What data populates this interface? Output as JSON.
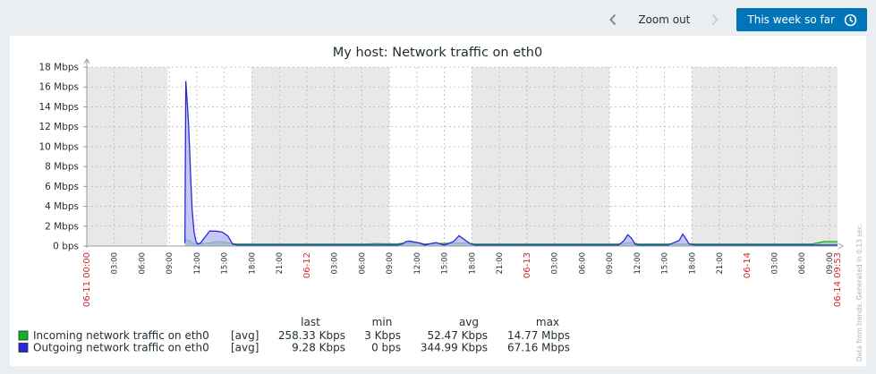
{
  "toolbar": {
    "zoom_out_label": "Zoom out",
    "period_label": "This week so far",
    "prev_icon": "chevron-left-icon",
    "next_icon": "chevron-right-icon",
    "clock_icon": "clock-icon"
  },
  "chart_data": {
    "type": "area",
    "title": "My host: Network traffic on eth0",
    "ylim": [
      0,
      18
    ],
    "y_unit": "Mbps",
    "y_ticks": [
      "0 bps",
      "2 Mbps",
      "4 Mbps",
      "6 Mbps",
      "8 Mbps",
      "10 Mbps",
      "12 Mbps",
      "14 Mbps",
      "16 Mbps",
      "18 Mbps"
    ],
    "x_range_hours": [
      0,
      81.88
    ],
    "x_labels": [
      {
        "h": 0,
        "text": "06-11 00:00",
        "red": true
      },
      {
        "h": 3,
        "text": "03:00"
      },
      {
        "h": 6,
        "text": "06:00"
      },
      {
        "h": 9,
        "text": "09:00"
      },
      {
        "h": 12,
        "text": "12:00"
      },
      {
        "h": 15,
        "text": "15:00"
      },
      {
        "h": 18,
        "text": "18:00"
      },
      {
        "h": 21,
        "text": "21:00"
      },
      {
        "h": 24,
        "text": "06-12",
        "red": true
      },
      {
        "h": 27,
        "text": "03:00"
      },
      {
        "h": 30,
        "text": "06:00"
      },
      {
        "h": 33,
        "text": "09:00"
      },
      {
        "h": 36,
        "text": "12:00"
      },
      {
        "h": 39,
        "text": "15:00"
      },
      {
        "h": 42,
        "text": "18:00"
      },
      {
        "h": 45,
        "text": "21:00"
      },
      {
        "h": 48,
        "text": "06-13",
        "red": true
      },
      {
        "h": 51,
        "text": "03:00"
      },
      {
        "h": 54,
        "text": "06:00"
      },
      {
        "h": 57,
        "text": "09:00"
      },
      {
        "h": 60,
        "text": "12:00"
      },
      {
        "h": 63,
        "text": "15:00"
      },
      {
        "h": 66,
        "text": "18:00"
      },
      {
        "h": 69,
        "text": "21:00"
      },
      {
        "h": 72,
        "text": "06-14",
        "red": true
      },
      {
        "h": 75,
        "text": "03:00"
      },
      {
        "h": 78,
        "text": "06:00"
      },
      {
        "h": 81,
        "text": "09:00"
      },
      {
        "h": 81.88,
        "text": "06-14 09:53",
        "red": true
      }
    ],
    "night_bands_hours": [
      [
        0,
        8.8
      ],
      [
        18,
        33
      ],
      [
        42,
        57
      ],
      [
        66,
        81.88
      ]
    ],
    "series": [
      {
        "name": "Incoming network traffic on eth0",
        "color": "#1aaf2a",
        "fill": "#8fd89a",
        "x_hours": [
          0,
          8.8,
          10.7,
          11.2,
          11.5,
          12.0,
          12.6,
          13.4,
          14.1,
          15.0,
          15.9,
          16.4,
          30.4,
          31.6,
          32.4,
          33.9,
          35.2,
          36.3,
          36.8,
          38.1,
          40.5,
          41.6,
          42.1,
          58.0,
          58.6,
          59.3,
          60.0,
          74.5,
          79.1,
          80.4,
          81.88
        ],
        "values": [
          null,
          null,
          0.7,
          0.55,
          0.3,
          0.2,
          0.25,
          0.3,
          0.45,
          0.4,
          0.25,
          0.2,
          0.2,
          0.25,
          0.22,
          0.22,
          0.35,
          0.3,
          0.2,
          0.25,
          0.3,
          0.28,
          0.2,
          0.2,
          0.25,
          0.35,
          0.2,
          0.2,
          0.2,
          0.45,
          0.45
        ]
      },
      {
        "name": "Outgoing network traffic on eth0",
        "color": "#2929d9",
        "fill": "#b3b3ef",
        "x_hours": [
          0,
          8.8,
          10.7,
          10.8,
          10.9,
          11.0,
          11.1,
          11.2,
          11.35,
          11.5,
          11.7,
          11.9,
          12.1,
          12.4,
          12.8,
          13.4,
          14.1,
          14.8,
          15.4,
          15.9,
          16.4,
          33.9,
          34.4,
          34.8,
          35.2,
          36.3,
          36.9,
          37.5,
          38.1,
          38.6,
          39.0,
          40.0,
          40.6,
          41.4,
          41.9,
          42.4,
          58.0,
          58.6,
          59.0,
          59.4,
          59.8,
          60.2,
          60.8,
          61.8,
          63.4,
          64.6,
          65.0,
          65.3,
          65.7,
          66.3,
          81.88
        ],
        "values": [
          null,
          null,
          0.3,
          16.6,
          15.2,
          13.8,
          12.2,
          10.0,
          6.5,
          3.5,
          1.4,
          0.5,
          0.2,
          0.3,
          0.8,
          1.5,
          1.5,
          1.4,
          1.0,
          0.2,
          0.1,
          0.1,
          0.2,
          0.45,
          0.5,
          0.3,
          0.1,
          0.25,
          0.35,
          0.2,
          0.1,
          0.45,
          1.05,
          0.5,
          0.2,
          0.1,
          0.1,
          0.55,
          1.15,
          0.8,
          0.2,
          0.1,
          0.1,
          0.1,
          0.1,
          0.55,
          1.2,
          0.8,
          0.2,
          0.1,
          0.1
        ]
      }
    ],
    "legend": {
      "headers": [
        "last",
        "min",
        "avg",
        "max"
      ],
      "rows": [
        {
          "name": "Incoming network traffic on eth0",
          "func": "[avg]",
          "last": "258.33 Kbps",
          "min": "3 Kbps",
          "avg": "52.47 Kbps",
          "max": "14.77 Mbps"
        },
        {
          "name": "Outgoing network traffic on eth0",
          "func": "[avg]",
          "last": "9.28 Kbps",
          "min": "0 bps",
          "avg": "344.99 Kbps",
          "max": "67.16 Mbps"
        }
      ]
    },
    "footnote": "Data from trends. Generated in 0.13 sec."
  }
}
